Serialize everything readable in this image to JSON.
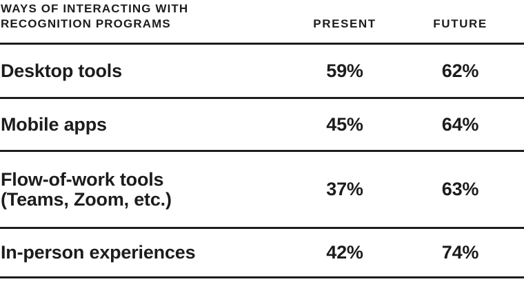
{
  "page": {
    "background": "#ffffff",
    "text_color": "#1c1c1c",
    "rule_color": "#1c1c1c"
  },
  "table": {
    "title_line1": "WAYS OF INTERACTING WITH",
    "title_line2": "RECOGNITION PROGRAMS",
    "columns": {
      "present": "PRESENT",
      "future": "FUTURE"
    },
    "rows": [
      {
        "label_line1": "Desktop tools",
        "label_line2": "",
        "present": "59%",
        "future": "62%"
      },
      {
        "label_line1": "Mobile apps",
        "label_line2": "",
        "present": "45%",
        "future": "64%"
      },
      {
        "label_line1": "Flow-of-work tools",
        "label_line2": "(Teams, Zoom, etc.)",
        "present": "37%",
        "future": "63%"
      },
      {
        "label_line1": "In-person experiences",
        "label_line2": "",
        "present": "42%",
        "future": "74%"
      }
    ]
  },
  "chart_data": {
    "type": "table",
    "title": "Ways of interacting with recognition programs",
    "categories": [
      "Desktop tools",
      "Mobile apps",
      "Flow-of-work tools (Teams, Zoom, etc.)",
      "In-person experiences"
    ],
    "series": [
      {
        "name": "Present",
        "values": [
          59,
          45,
          37,
          42
        ]
      },
      {
        "name": "Future",
        "values": [
          62,
          64,
          63,
          74
        ]
      }
    ],
    "units": "%",
    "layout": {
      "grid": "horizontal-rules-only",
      "legend_position": "column-headers"
    }
  }
}
